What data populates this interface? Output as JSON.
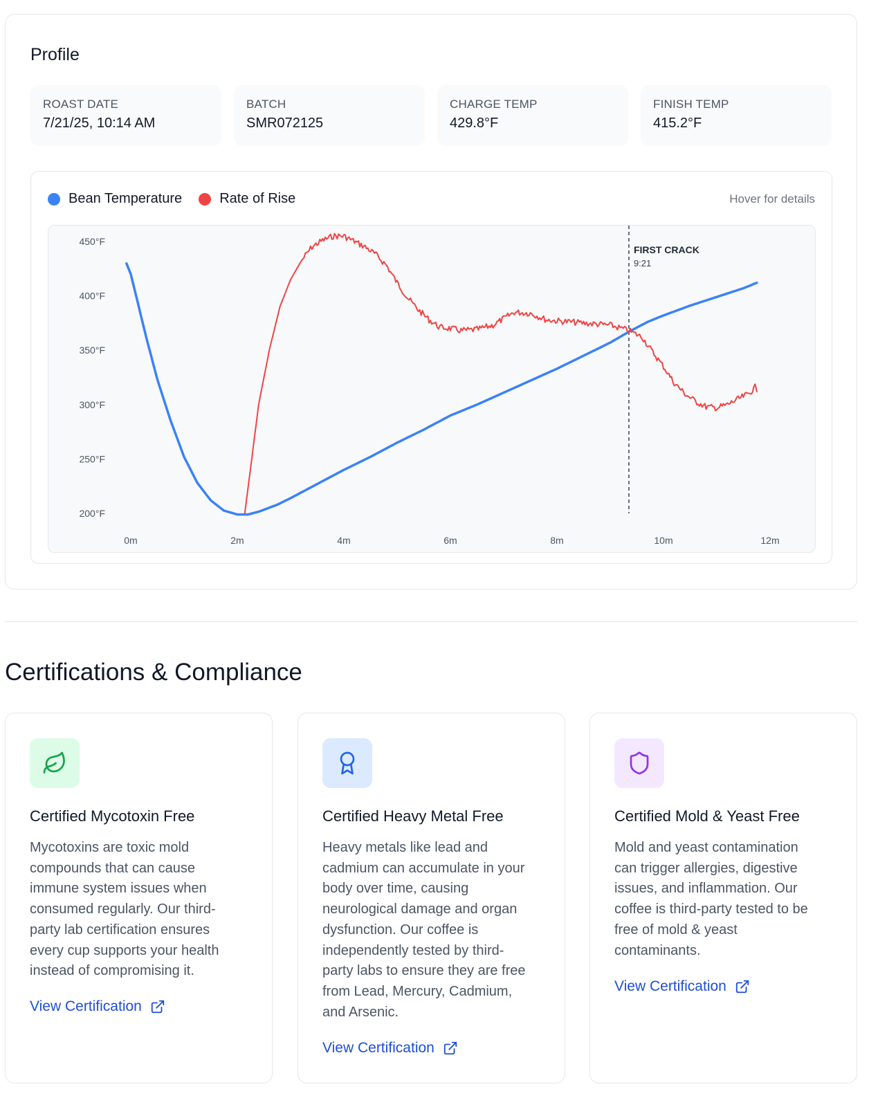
{
  "profile": {
    "title": "Profile",
    "stats": [
      {
        "label": "ROAST DATE",
        "value": "7/21/25, 10:14 AM"
      },
      {
        "label": "BATCH",
        "value": "SMR072125"
      },
      {
        "label": "CHARGE TEMP",
        "value": "429.8°F"
      },
      {
        "label": "FINISH TEMP",
        "value": "415.2°F"
      }
    ]
  },
  "chart": {
    "legend": {
      "bean": "Bean Temperature",
      "ror": "Rate of Rise"
    },
    "hover_hint": "Hover for details",
    "first_crack_label": "FIRST CRACK",
    "first_crack_time": "9:21"
  },
  "chart_data": {
    "type": "line",
    "x_unit": "minutes",
    "xlim": [
      0,
      12
    ],
    "ylim": [
      200,
      450
    ],
    "x_ticks": [
      "0m",
      "2m",
      "4m",
      "6m",
      "8m",
      "10m",
      "12m"
    ],
    "y_ticks": [
      "450°F",
      "400°F",
      "350°F",
      "300°F",
      "250°F",
      "200°F"
    ],
    "grid": false,
    "legend_position": "top-left",
    "first_crack_x": 9.35,
    "series": [
      {
        "name": "Bean Temperature",
        "color": "#3b82f6",
        "points": [
          [
            -0.08,
            429.8
          ],
          [
            0.0,
            420
          ],
          [
            0.15,
            390
          ],
          [
            0.3,
            360
          ],
          [
            0.5,
            323
          ],
          [
            0.75,
            285
          ],
          [
            1.0,
            252
          ],
          [
            1.25,
            228
          ],
          [
            1.5,
            212
          ],
          [
            1.75,
            202.5
          ],
          [
            2.0,
            199
          ],
          [
            2.2,
            199
          ],
          [
            2.4,
            201.5
          ],
          [
            2.75,
            208
          ],
          [
            3.0,
            214
          ],
          [
            3.5,
            227
          ],
          [
            4.0,
            240
          ],
          [
            4.5,
            252
          ],
          [
            5.0,
            265
          ],
          [
            5.5,
            277
          ],
          [
            6.0,
            290
          ],
          [
            6.5,
            300
          ],
          [
            7.0,
            311
          ],
          [
            7.5,
            322
          ],
          [
            8.0,
            333
          ],
          [
            8.5,
            345
          ],
          [
            9.0,
            357
          ],
          [
            9.35,
            367
          ],
          [
            9.7,
            376
          ],
          [
            10.0,
            382
          ],
          [
            10.5,
            391
          ],
          [
            11.0,
            399
          ],
          [
            11.5,
            407
          ],
          [
            11.75,
            412
          ]
        ]
      },
      {
        "name": "Rate of Rise",
        "color": "#ef4444",
        "points": [
          [
            2.14,
            200
          ],
          [
            2.25,
            242
          ],
          [
            2.4,
            300
          ],
          [
            2.6,
            350
          ],
          [
            2.8,
            390
          ],
          [
            3.0,
            415
          ],
          [
            3.2,
            432
          ],
          [
            3.4,
            445
          ],
          [
            3.6,
            451
          ],
          [
            3.8,
            455
          ],
          [
            4.0,
            455
          ],
          [
            4.2,
            450
          ],
          [
            4.4,
            445
          ],
          [
            4.6,
            438
          ],
          [
            4.8,
            428
          ],
          [
            5.0,
            412
          ],
          [
            5.2,
            398
          ],
          [
            5.4,
            387
          ],
          [
            5.6,
            378
          ],
          [
            5.8,
            371
          ],
          [
            6.0,
            370
          ],
          [
            6.2,
            368
          ],
          [
            6.5,
            369
          ],
          [
            6.8,
            373
          ],
          [
            7.0,
            379
          ],
          [
            7.2,
            385
          ],
          [
            7.5,
            384
          ],
          [
            7.8,
            378
          ],
          [
            8.0,
            377
          ],
          [
            8.5,
            375
          ],
          [
            9.0,
            373
          ],
          [
            9.35,
            368
          ],
          [
            9.6,
            362
          ],
          [
            9.8,
            348
          ],
          [
            10.0,
            335
          ],
          [
            10.2,
            320
          ],
          [
            10.4,
            310
          ],
          [
            10.6,
            303
          ],
          [
            10.8,
            298
          ],
          [
            11.0,
            297
          ],
          [
            11.2,
            300
          ],
          [
            11.4,
            305
          ],
          [
            11.6,
            310
          ],
          [
            11.72,
            316
          ],
          [
            11.75,
            312
          ]
        ]
      }
    ]
  },
  "certifications": {
    "title": "Certifications & Compliance",
    "items": [
      {
        "icon": "leaf-icon",
        "icon_bg": "#dcfce7",
        "icon_color": "#16a34a",
        "title": "Certified Mycotoxin Free",
        "lines": [
          "Mycotoxins are toxic mold",
          "compounds that can cause",
          "immune system issues when",
          "consumed regularly. Our third-",
          "party lab certification ensures",
          "every cup supports your health",
          "instead of compromising it."
        ],
        "link": "View Certification"
      },
      {
        "icon": "award-icon",
        "icon_bg": "#dbeafe",
        "icon_color": "#2563eb",
        "title": "Certified Heavy Metal Free",
        "lines": [
          "Heavy metals like lead and",
          "cadmium can accumulate in your",
          "body over time, causing",
          "neurological damage and organ",
          "dysfunction. Our coffee is",
          "independently tested by third-",
          "party labs to ensure they are free",
          "from Lead, Mercury, Cadmium,",
          "and Arsenic."
        ],
        "link": "View Certification"
      },
      {
        "icon": "shield-icon",
        "icon_bg": "#f3e8ff",
        "icon_color": "#9333ea",
        "title": "Certified Mold & Yeast Free",
        "lines": [
          "Mold and yeast contamination",
          "can trigger allergies, digestive",
          "issues, and inflammation. Our",
          "coffee is third-party tested to be",
          "free of mold & yeast",
          "contaminants."
        ],
        "link": "View Certification"
      }
    ]
  }
}
